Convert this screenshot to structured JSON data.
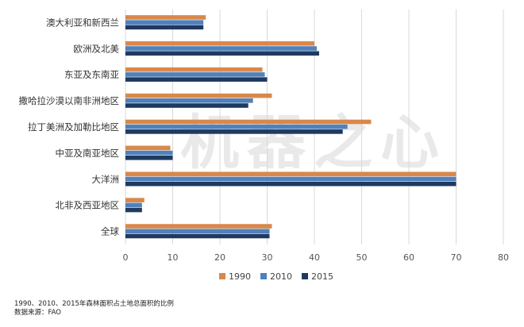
{
  "watermark": "机器之心",
  "caption": {
    "line1": "1990、2010、2015年森林面积占土地总面积的比例",
    "line2": "数据来源：FAO"
  },
  "colors": {
    "1990": "#d9884a",
    "2010": "#4f81bd",
    "2015": "#1f3a5f",
    "grid": "#d9d9d9"
  },
  "chart_data": {
    "type": "bar",
    "orientation": "horizontal",
    "categories": [
      "澳大利亚和新西兰",
      "欧洲及北美",
      "东亚及东南亚",
      "撒哈拉沙漠以南非洲地区",
      "拉丁美洲及加勒比地区",
      "中亚及南亚地区",
      "大洋洲",
      "北非及西亚地区",
      "全球"
    ],
    "series": [
      {
        "name": "1990",
        "values": [
          17,
          40,
          29,
          31,
          52,
          9.5,
          70,
          4,
          31
        ]
      },
      {
        "name": "2010",
        "values": [
          16.5,
          40.5,
          29.5,
          27,
          47,
          10,
          70,
          3.5,
          30.5
        ]
      },
      {
        "name": "2015",
        "values": [
          16.5,
          41,
          30,
          26,
          46,
          10,
          70,
          3.5,
          30.5
        ]
      }
    ],
    "xticks": [
      "0",
      "10",
      "20",
      "30",
      "40",
      "50",
      "60",
      "70",
      "80"
    ],
    "xlim": [
      0,
      80
    ],
    "grid": true,
    "legend": "bottom-center"
  }
}
